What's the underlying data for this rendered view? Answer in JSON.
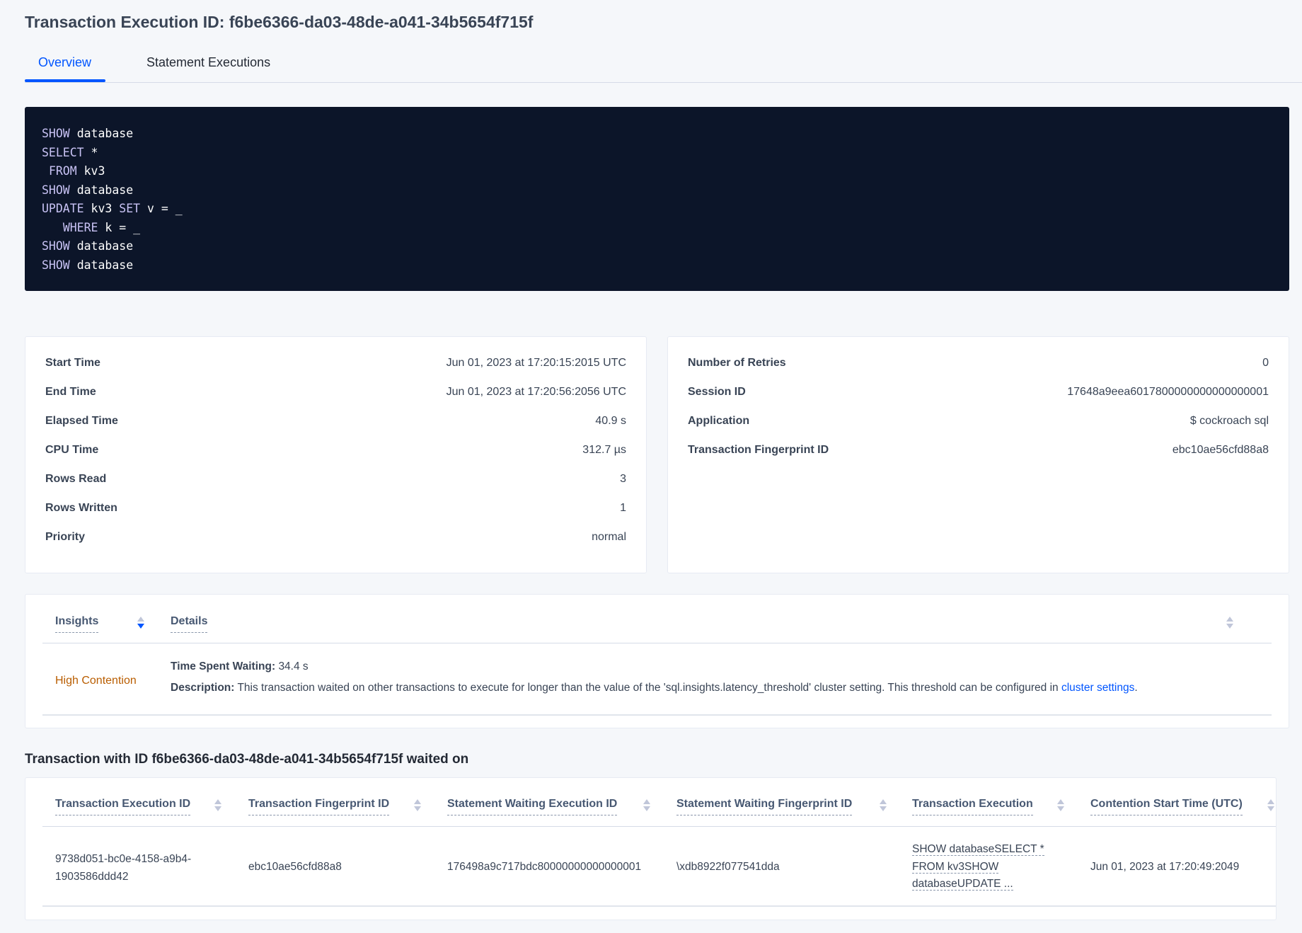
{
  "page": {
    "title": "Transaction Execution ID: f6be6366-da03-48de-a041-34b5654f715f"
  },
  "tabs": [
    {
      "label": "Overview",
      "active": true
    },
    {
      "label": "Statement Executions",
      "active": false
    }
  ],
  "query_lines": [
    "SHOW database",
    "SELECT *",
    " FROM kv3",
    "SHOW database",
    "UPDATE kv3 SET v = _",
    "   WHERE k = _",
    "SHOW database",
    "SHOW database"
  ],
  "summary_left": [
    {
      "label": "Start Time",
      "value": "Jun 01, 2023 at 17:20:15:2015 UTC"
    },
    {
      "label": "End Time",
      "value": "Jun 01, 2023 at 17:20:56:2056 UTC"
    },
    {
      "label": "Elapsed Time",
      "value": "40.9 s"
    },
    {
      "label": "CPU Time",
      "value": "312.7 µs"
    },
    {
      "label": "Rows Read",
      "value": "3"
    },
    {
      "label": "Rows Written",
      "value": "1"
    },
    {
      "label": "Priority",
      "value": "normal"
    }
  ],
  "summary_right": [
    {
      "label": "Number of Retries",
      "value": "0"
    },
    {
      "label": "Session ID",
      "value": "17648a9eea6017800000000000000001"
    },
    {
      "label": "Application",
      "value": "$ cockroach sql"
    },
    {
      "label": "Transaction Fingerprint ID",
      "value": "ebc10ae56cfd88a8",
      "link": true
    }
  ],
  "insights": {
    "columns": [
      "Insights",
      "Details"
    ],
    "rows": [
      {
        "insight": "High Contention",
        "time_label": "Time Spent Waiting:",
        "time_value": "34.4 s",
        "desc_label": "Description:",
        "desc_text": "This transaction waited on other transactions to execute for longer than the value of the 'sql.insights.latency_threshold' cluster setting. This threshold can be configured in",
        "desc_link": "cluster settings",
        "desc_end": "."
      }
    ],
    "colors": {
      "insight": "#b95d00",
      "link": "#0055ff"
    }
  },
  "waited_on": {
    "heading": "Transaction with ID f6be6366-da03-48de-a041-34b5654f715f waited on",
    "columns": [
      "Transaction Execution ID",
      "Transaction Fingerprint ID",
      "Statement Waiting Execution ID",
      "Statement Waiting Fingerprint ID",
      "Transaction Execution",
      "Contention Start Time (UTC)"
    ],
    "rows": [
      {
        "txn_exec_id": [
          "9738d051-bc0e-4158-a9b4-",
          "1903586ddd42"
        ],
        "txn_fingerprint_id": "ebc10ae56cfd88a8",
        "stmt_exec_id": "176498a9c717bdc80000000000000001",
        "stmt_fingerprint_id": "\\xdb8922f077541dda",
        "txn_execution": [
          "SHOW databaseSELECT *",
          "FROM kv3SHOW",
          "databaseUPDATE ..."
        ],
        "contention_start": "Jun 01, 2023 at 17:20:49:2049"
      }
    ]
  }
}
